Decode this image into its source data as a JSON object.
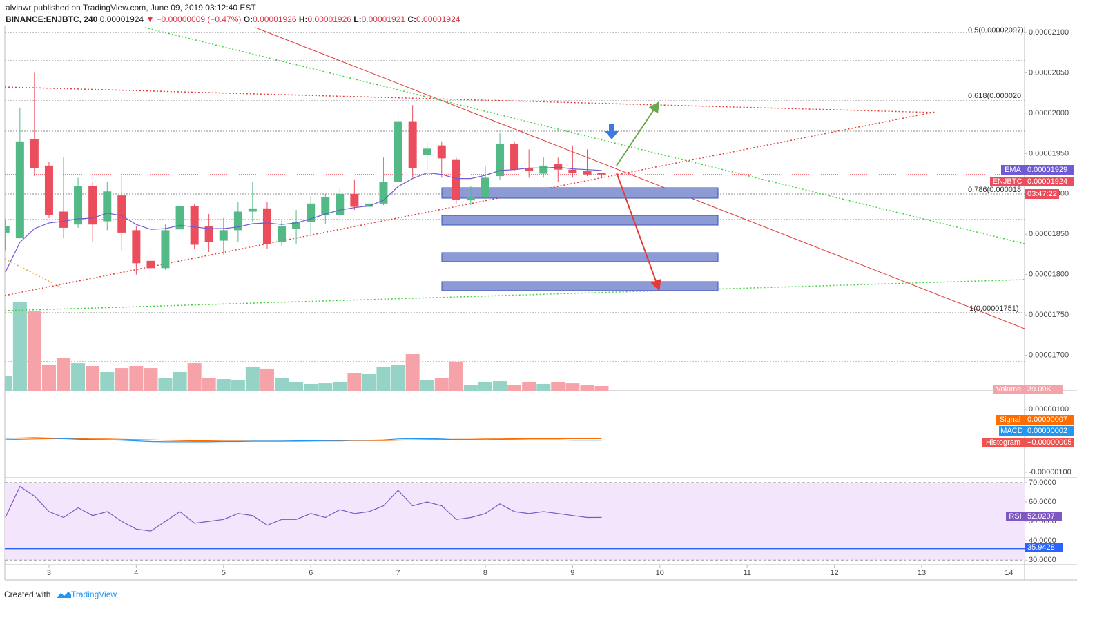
{
  "header": {
    "publisher_line": "alvinwr published on TradingView.com, June 09, 2019 03:12:40 EST",
    "symbol": "BINANCE:ENJBTC, 240",
    "price": "0.00001924",
    "change": "▼ −0.00000009 (−0.47%)",
    "ohlc": [
      {
        "key": "O:",
        "value": "0.00001926"
      },
      {
        "key": "H:",
        "value": "0.00001926"
      },
      {
        "key": "L:",
        "value": "0.00001921"
      },
      {
        "key": "C:",
        "value": "0.00001924"
      }
    ]
  },
  "chart_data": [
    {
      "type": "candlestick",
      "x": [
        2.5,
        2.667,
        2.833,
        3,
        3.167,
        3.333,
        3.5,
        3.667,
        3.833,
        4,
        4.167,
        4.333,
        4.5,
        4.667,
        4.833,
        5,
        5.167,
        5.333,
        5.5,
        5.667,
        5.833,
        6,
        6.167,
        6.333,
        6.5,
        6.667,
        6.833,
        7,
        7.167,
        7.333,
        7.5,
        7.667,
        7.833,
        8,
        8.167,
        8.333,
        8.5,
        8.667,
        8.833,
        9,
        9.167,
        9.333
      ],
      "open": [
        1.852e-05,
        1.845e-05,
        1.968e-05,
        1.935e-05,
        1.878e-05,
        1.862e-05,
        1.91e-05,
        1.866e-05,
        1.898e-05,
        1.855e-05,
        1.817e-05,
        1.808e-05,
        1.856e-05,
        1.885e-05,
        1.86e-05,
        1.842e-05,
        1.855e-05,
        1.878e-05,
        1.882e-05,
        1.84e-05,
        1.857e-05,
        1.865e-05,
        1.874e-05,
        1.874e-05,
        1.9e-05,
        1.884e-05,
        1.888e-05,
        1.915e-05,
        1.99e-05,
        1.948e-05,
        1.96e-05,
        1.942e-05,
        1.892e-05,
        1.896e-05,
        1.922e-05,
        1.962e-05,
        1.932e-05,
        1.925e-05,
        1.937e-05,
        1.93e-05,
        1.928e-05,
        1.926e-05
      ],
      "high": [
        1.868e-05,
        2.007e-05,
        2.05e-05,
        1.94e-05,
        1.945e-05,
        1.92e-05,
        1.915e-05,
        1.915e-05,
        1.922e-05,
        1.86e-05,
        1.838e-05,
        1.862e-05,
        1.903e-05,
        1.888e-05,
        1.875e-05,
        1.87e-05,
        1.89e-05,
        1.915e-05,
        1.89e-05,
        1.868e-05,
        1.88e-05,
        1.897e-05,
        1.9e-05,
        1.906e-05,
        1.918e-05,
        1.9e-05,
        1.945e-05,
        2.005e-05,
        2.01e-05,
        1.965e-05,
        1.965e-05,
        1.945e-05,
        1.91e-05,
        1.935e-05,
        1.975e-05,
        1.965e-05,
        1.955e-05,
        1.945e-05,
        1.945e-05,
        1.96e-05,
        1.955e-05,
        1.926e-05
      ],
      "low": [
        1.83e-05,
        1.845e-05,
        1.922e-05,
        1.87e-05,
        1.845e-05,
        1.858e-05,
        1.84e-05,
        1.855e-05,
        1.83e-05,
        1.8e-05,
        1.79e-05,
        1.806e-05,
        1.845e-05,
        1.832e-05,
        1.828e-05,
        1.825e-05,
        1.84e-05,
        1.865e-05,
        1.832e-05,
        1.835e-05,
        1.838e-05,
        1.85e-05,
        1.863e-05,
        1.87e-05,
        1.88e-05,
        1.872e-05,
        1.886e-05,
        1.91e-05,
        1.92e-05,
        1.93e-05,
        1.92e-05,
        1.888e-05,
        1.886e-05,
        1.89e-05,
        1.917e-05,
        1.928e-05,
        1.92e-05,
        1.92e-05,
        1.915e-05,
        1.92e-05,
        1.922e-05,
        1.921e-05
      ],
      "close": [
        1.86e-05,
        1.965e-05,
        1.932e-05,
        1.874e-05,
        1.858e-05,
        1.91e-05,
        1.862e-05,
        1.903e-05,
        1.852e-05,
        1.814e-05,
        1.808e-05,
        1.855e-05,
        1.885e-05,
        1.837e-05,
        1.84e-05,
        1.855e-05,
        1.878e-05,
        1.882e-05,
        1.838e-05,
        1.86e-05,
        1.865e-05,
        1.888e-05,
        1.896e-05,
        1.9e-05,
        1.884e-05,
        1.888e-05,
        1.915e-05,
        1.99e-05,
        1.932e-05,
        1.956e-05,
        1.944e-05,
        1.893e-05,
        1.896e-05,
        1.92e-05,
        1.962e-05,
        1.93e-05,
        1.928e-05,
        1.935e-05,
        1.93e-05,
        1.926e-05,
        1.924e-05,
        1.924e-05
      ],
      "up_color": "#53b987",
      "down_color": "#eb4d5c",
      "xlim": [
        2.494,
        14.179
      ],
      "xticks": [
        3,
        4,
        5,
        6,
        7,
        8,
        9,
        10,
        11,
        12,
        13,
        14
      ],
      "ylim": [
        1.656e-05,
        2.106e-05
      ],
      "yticks": [
        {
          "value": 2.1e-05,
          "label": "0.00002100"
        },
        {
          "value": 2.05e-05,
          "label": "0.00002050"
        },
        {
          "value": 2e-05,
          "label": "0.00002000"
        },
        {
          "value": 1.95e-05,
          "label": "0.00001950"
        },
        {
          "value": 1.9e-05,
          "label": "0.00001900"
        },
        {
          "value": 1.85e-05,
          "label": "0.00001850"
        },
        {
          "value": 1.8e-05,
          "label": "0.00001800"
        },
        {
          "value": 1.75e-05,
          "label": "0.00001750"
        },
        {
          "value": 1.7e-05,
          "label": "0.00001700"
        }
      ],
      "series": [
        {
          "name": "EMA",
          "color": "#6f5bd3",
          "tag": "0.00001929",
          "values": [
            1.803e-05,
            1.84e-05,
            1.857e-05,
            1.864e-05,
            1.866e-05,
            1.869e-05,
            1.87e-05,
            1.876e-05,
            1.873e-05,
            1.862e-05,
            1.856e-05,
            1.857e-05,
            1.861e-05,
            1.859e-05,
            1.857e-05,
            1.857e-05,
            1.859e-05,
            1.863e-05,
            1.864e-05,
            1.862e-05,
            1.864e-05,
            1.869e-05,
            1.875e-05,
            1.88e-05,
            1.883e-05,
            1.885e-05,
            1.892e-05,
            1.909e-05,
            1.919e-05,
            1.926e-05,
            1.924e-05,
            1.919e-05,
            1.919e-05,
            1.923e-05,
            1.929e-05,
            1.93e-05,
            1.932e-05,
            1.932e-05,
            1.933e-05,
            1.931e-05,
            1.93e-05,
            1.929e-05
          ]
        }
      ],
      "price_tag": {
        "name": "ENJBTC",
        "value": 1.924e-05,
        "label": "0.00001924",
        "countdown": "03:47:22",
        "color": "#eb4d5c"
      },
      "annotations": [
        "0.5(0.00002097)",
        "0.618(0.000020",
        "0.786(0.000018",
        "1(0.00001751)"
      ]
    },
    {
      "type": "bar",
      "name": "Volume",
      "tag": "39.09K",
      "up_color": "#94d3c5",
      "down_color": "#f5a3a9",
      "values": [
        123,
        715,
        642,
        212,
        268,
        223,
        201,
        151,
        184,
        201,
        184,
        101,
        151,
        223,
        101,
        95,
        89,
        190,
        179,
        101,
        73,
        56,
        61,
        73,
        145,
        134,
        196,
        212,
        296,
        89,
        101,
        235,
        50,
        73,
        78,
        45,
        73,
        56,
        67,
        61,
        50,
        39.09
      ]
    },
    {
      "type": "line",
      "ylim": [
        -1.178e-06,
        1.578e-06
      ],
      "yticks": [
        {
          "value": 1e-06,
          "label": "0.00000100"
        },
        {
          "value": -1e-06,
          "label": "-0.00000100"
        }
      ],
      "series": [
        {
          "name": "MACD",
          "color": "#2196f3",
          "tag": "0.00000002",
          "values": [
            8e-08,
            9e-08,
            1e-07,
            9e-08,
            7e-08,
            5e-08,
            4e-08,
            3e-08,
            2e-08,
            0,
            -2e-08,
            -3e-08,
            -3e-08,
            -3e-08,
            -3e-08,
            -2e-08,
            -2e-08,
            -1e-08,
            -1e-08,
            -1e-08,
            0,
            0,
            1e-08,
            1e-08,
            2e-08,
            2e-08,
            3e-08,
            6e-08,
            7e-08,
            7e-08,
            6e-08,
            4e-08,
            3e-08,
            3e-08,
            4e-08,
            4e-08,
            3e-08,
            3e-08,
            3e-08,
            2e-08,
            2e-08,
            2e-08
          ]
        },
        {
          "name": "Signal",
          "color": "#ff6d00",
          "tag": "0.00000007",
          "values": [
            4e-08,
            5e-08,
            6e-08,
            7e-08,
            7e-08,
            7e-08,
            6e-08,
            6e-08,
            5e-08,
            4e-08,
            3e-08,
            2e-08,
            1e-08,
            0,
            0,
            -1e-08,
            -1e-08,
            -1e-08,
            -1e-08,
            -1e-08,
            -1e-08,
            0,
            0,
            0,
            1e-08,
            1e-08,
            1e-08,
            2e-08,
            3e-08,
            4e-08,
            4e-08,
            5e-08,
            5e-08,
            6e-08,
            6e-08,
            7e-08,
            7e-08,
            7e-08,
            7e-08,
            7e-08,
            7e-08,
            7e-08
          ]
        }
      ],
      "histogram": {
        "name": "Histogram",
        "label": "−0.00000005",
        "color": "#ef5350"
      }
    },
    {
      "type": "line",
      "ylim": [
        27.6,
        72.1
      ],
      "yticks": [
        {
          "value": 70,
          "label": "70.0000"
        },
        {
          "value": 60,
          "label": "60.0000"
        },
        {
          "value": 50,
          "label": "50.0000"
        },
        {
          "value": 40,
          "label": "40.0000"
        },
        {
          "value": 30,
          "label": "30.0000"
        }
      ],
      "band": [
        30,
        70
      ],
      "band_color": "#f3e5fc",
      "series": [
        {
          "name": "RSI",
          "color": "#7e57c2",
          "tag": "52.0207",
          "values": [
            52,
            68,
            63,
            55,
            52,
            57,
            53,
            55,
            50,
            46,
            45,
            50,
            55,
            49,
            50,
            51,
            54,
            53,
            48,
            51,
            51,
            54,
            52,
            56,
            54,
            55,
            58,
            66,
            58,
            60,
            58,
            51,
            52,
            54,
            59,
            55,
            54,
            55,
            54,
            53,
            52,
            52.0207
          ]
        }
      ],
      "level": 35.9428,
      "level_color": "#2962ff"
    }
  ],
  "footer": {
    "created": "Created with",
    "brand": "TradingView"
  }
}
